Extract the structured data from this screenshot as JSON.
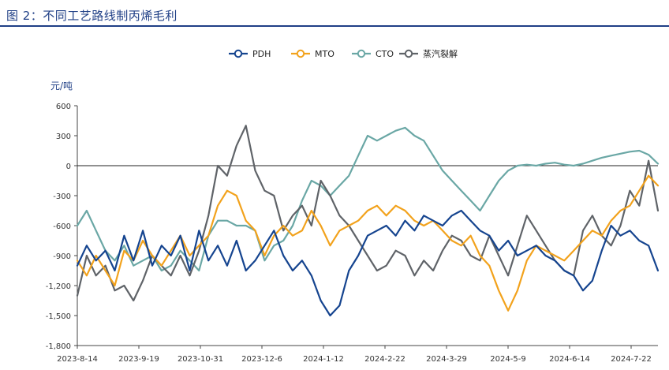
{
  "figure_title": "图 2：不同工艺路线制丙烯毛利",
  "colors": {
    "title": "#1f3f86",
    "PDH": "#15448f",
    "MTO": "#f2a21c",
    "CTO": "#6aa7a5",
    "steam": "#5f6368",
    "axis": "#444444"
  },
  "chart_data": {
    "type": "line",
    "title": "不同工艺路线制丙烯毛利",
    "ylabel": "元/吨",
    "xlabel": "",
    "ylim": [
      -1800,
      600
    ],
    "yticks": [
      600,
      300,
      0,
      -300,
      -600,
      -900,
      -1200,
      -1500,
      -1800
    ],
    "ytick_labels": [
      "600",
      "300",
      "0",
      "-300",
      "-600",
      "-900",
      "-1,200",
      "-1,500",
      "-1,800"
    ],
    "xtick_labels": [
      "2023-8-14",
      "2023-9-19",
      "2023-10-31",
      "2023-12-6",
      "2024-1-12",
      "2024-2-22",
      "2024-3-29",
      "2024-5-9",
      "2024-6-14",
      "2024-7-22"
    ],
    "x_count": 63,
    "legend_position": "top-center",
    "series": [
      {
        "name": "PDH",
        "values": [
          -1000,
          -800,
          -950,
          -850,
          -1050,
          -700,
          -950,
          -650,
          -1000,
          -800,
          -900,
          -700,
          -1050,
          -650,
          -950,
          -800,
          -1000,
          -750,
          -1050,
          -950,
          -800,
          -650,
          -900,
          -1050,
          -950,
          -1100,
          -1350,
          -1500,
          -1400,
          -1050,
          -900,
          -700,
          -650,
          -600,
          -700,
          -550,
          -650,
          -500,
          -550,
          -600,
          -500,
          -450,
          -550,
          -650,
          -700,
          -850,
          -750,
          -900,
          -850,
          -800,
          -900,
          -950,
          -1050,
          -1100,
          -1250,
          -1150,
          -850,
          -600,
          -700,
          -650,
          -750,
          -800,
          -1050
        ]
      },
      {
        "name": "MTO",
        "values": [
          -950,
          -1100,
          -900,
          -1050,
          -1200,
          -850,
          -950,
          -750,
          -900,
          -1000,
          -850,
          -700,
          -900,
          -800,
          -700,
          -400,
          -250,
          -300,
          -550,
          -650,
          -900,
          -700,
          -600,
          -700,
          -650,
          -450,
          -600,
          -800,
          -650,
          -600,
          -550,
          -450,
          -400,
          -500,
          -400,
          -450,
          -550,
          -600,
          -550,
          -650,
          -750,
          -800,
          -700,
          -900,
          -1000,
          -1250,
          -1450,
          -1250,
          -950,
          -800,
          -850,
          -900,
          -950,
          -850,
          -750,
          -650,
          -700,
          -550,
          -450,
          -400,
          -250,
          -100,
          -200
        ]
      },
      {
        "name": "CTO",
        "values": [
          -600,
          -450,
          -650,
          -850,
          -950,
          -800,
          -1000,
          -950,
          -900,
          -1050,
          -1000,
          -850,
          -950,
          -1050,
          -700,
          -550,
          -550,
          -600,
          -600,
          -650,
          -950,
          -800,
          -750,
          -600,
          -350,
          -150,
          -200,
          -300,
          -200,
          -100,
          100,
          300,
          250,
          300,
          350,
          380,
          300,
          250,
          100,
          -50,
          -150,
          -250,
          -350,
          -450,
          -300,
          -150,
          -50,
          0,
          10,
          0,
          20,
          30,
          10,
          0,
          20,
          50,
          80,
          100,
          120,
          140,
          150,
          110,
          20
        ]
      },
      {
        "name": "蒸汽裂解",
        "values": [
          -1300,
          -900,
          -1100,
          -1000,
          -1250,
          -1200,
          -1350,
          -1150,
          -900,
          -1000,
          -1100,
          -900,
          -1100,
          -850,
          -500,
          0,
          -100,
          200,
          400,
          -50,
          -250,
          -300,
          -650,
          -500,
          -400,
          -600,
          -150,
          -300,
          -500,
          -600,
          -750,
          -900,
          -1050,
          -1000,
          -850,
          -900,
          -1100,
          -950,
          -1050,
          -850,
          -700,
          -750,
          -900,
          -950,
          -700,
          -900,
          -1100,
          -800,
          -500,
          -650,
          -800,
          -950,
          -1050,
          -1100,
          -650,
          -500,
          -700,
          -800,
          -600,
          -250,
          -400,
          50,
          -450
        ]
      }
    ]
  }
}
